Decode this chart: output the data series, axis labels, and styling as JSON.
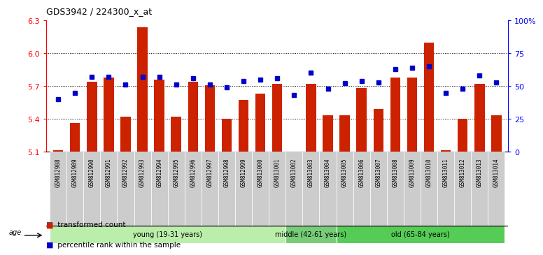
{
  "title": "GDS3942 / 224300_x_at",
  "samples": [
    "GSM812988",
    "GSM812989",
    "GSM812990",
    "GSM812991",
    "GSM812992",
    "GSM812993",
    "GSM812994",
    "GSM812995",
    "GSM812996",
    "GSM812997",
    "GSM812998",
    "GSM812999",
    "GSM813000",
    "GSM813001",
    "GSM813002",
    "GSM813003",
    "GSM813004",
    "GSM813005",
    "GSM813006",
    "GSM813007",
    "GSM813008",
    "GSM813009",
    "GSM813010",
    "GSM813011",
    "GSM813012",
    "GSM813013",
    "GSM813014"
  ],
  "red_values": [
    5.11,
    5.36,
    5.74,
    5.78,
    5.42,
    6.24,
    5.76,
    5.42,
    5.74,
    5.71,
    5.4,
    5.57,
    5.63,
    5.72,
    5.1,
    5.72,
    5.43,
    5.43,
    5.68,
    5.49,
    5.78,
    5.78,
    6.1,
    5.11,
    5.4,
    5.72,
    5.43
  ],
  "blue_values": [
    40,
    45,
    57,
    57,
    51,
    57,
    57,
    51,
    56,
    51,
    49,
    54,
    55,
    56,
    43,
    60,
    48,
    52,
    54,
    53,
    63,
    64,
    65,
    45,
    48,
    58,
    53
  ],
  "ylim_left": [
    5.1,
    6.3
  ],
  "ylim_right": [
    0,
    100
  ],
  "yticks_left": [
    5.1,
    5.4,
    5.7,
    6.0,
    6.3
  ],
  "yticks_right": [
    0,
    25,
    50,
    75,
    100
  ],
  "ytick_labels_right": [
    "0",
    "25",
    "50",
    "75",
    "100%"
  ],
  "bar_color": "#cc2200",
  "dot_color": "#0000cc",
  "groups": [
    {
      "label": "young (19-31 years)",
      "start": 0,
      "end": 13,
      "color": "#bbeeaa"
    },
    {
      "label": "middle (42-61 years)",
      "start": 14,
      "end": 16,
      "color": "#77cc77"
    },
    {
      "label": "old (65-84 years)",
      "start": 17,
      "end": 26,
      "color": "#55cc55"
    }
  ],
  "legend_items": [
    {
      "label": "transformed count",
      "color": "#cc2200"
    },
    {
      "label": "percentile rank within the sample",
      "color": "#0000cc"
    }
  ],
  "tick_bg_color": "#cccccc"
}
